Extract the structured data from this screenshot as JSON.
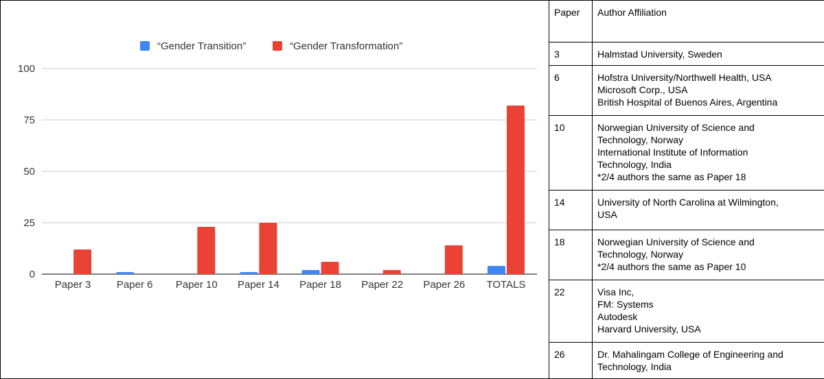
{
  "chart_data": {
    "type": "bar",
    "title": "",
    "xlabel": "",
    "ylabel": "",
    "categories": [
      "Paper 3",
      "Paper 6",
      "Paper 10",
      "Paper 14",
      "Paper 18",
      "Paper 22",
      "Paper 26",
      "TOTALS"
    ],
    "series": [
      {
        "name": "“Gender Transition”",
        "color": "#4285f4",
        "values": [
          0,
          1,
          0,
          1,
          2,
          0,
          0,
          4
        ]
      },
      {
        "name": "“Gender Transformation”",
        "color": "#ea4335",
        "values": [
          12,
          0,
          23,
          25,
          6,
          2,
          14,
          82
        ]
      }
    ],
    "ylim": [
      0,
      100
    ],
    "yticks": [
      0,
      25,
      50,
      75,
      100
    ],
    "grid": true,
    "legend_position": "top"
  },
  "table": {
    "headers": [
      "Paper",
      "Author Affiliation"
    ],
    "rows": [
      {
        "paper": "3",
        "affiliation": [
          "Halmstad University, Sweden"
        ]
      },
      {
        "paper": "6",
        "affiliation": [
          "Hofstra University/Northwell Health, USA",
          "Microsoft Corp., USA",
          "British Hospital of Buenos Aires, Argentina"
        ]
      },
      {
        "paper": "10",
        "affiliation": [
          "Norwegian University of Science and",
          "Technology, Norway",
          "International Institute of Information",
          "Technology, India",
          "*2/4 authors the same as Paper 18"
        ]
      },
      {
        "paper": "14",
        "affiliation": [
          "University of North Carolina at Wilmington,",
          "USA"
        ]
      },
      {
        "paper": "18",
        "affiliation": [
          "Norwegian University of Science and",
          "Technology, Norway",
          "*2/4 authors the same as Paper 10"
        ]
      },
      {
        "paper": "22",
        "affiliation": [
          "Visa Inc,",
          "FM: Systems",
          "Autodesk",
          "Harvard University, USA"
        ]
      },
      {
        "paper": "26",
        "affiliation": [
          "Dr. Mahalingam College of Engineering and",
          "Technology, India"
        ]
      }
    ]
  }
}
